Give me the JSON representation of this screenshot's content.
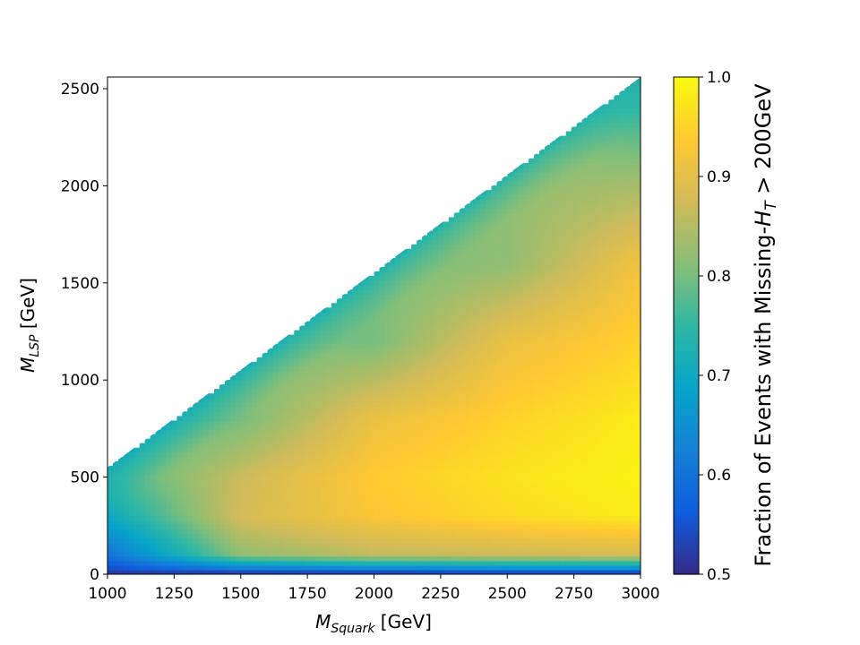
{
  "chart_data": {
    "type": "heatmap",
    "title": "",
    "xlabel": {
      "main": "M",
      "sub": "Squark",
      "unit": " [GeV]"
    },
    "ylabel": {
      "main": "M",
      "sub": "LSP",
      "unit": " [GeV]"
    },
    "colorbar_label": {
      "pre": "Fraction of Events with Missing-",
      "main": "H",
      "sub": "T",
      "post": " > 200GeV"
    },
    "xlim": [
      1000,
      3000
    ],
    "ylim": [
      0,
      2560
    ],
    "x_ticks": [
      1000,
      1250,
      1500,
      1750,
      2000,
      2250,
      2500,
      2750,
      3000
    ],
    "x_tick_labels": [
      "1000",
      "1250",
      "1500",
      "1750",
      "2000",
      "2250",
      "2500",
      "2750",
      "3000"
    ],
    "y_ticks": [
      0,
      500,
      1000,
      1500,
      2000,
      2500
    ],
    "y_tick_labels": [
      "0",
      "500",
      "1000",
      "1500",
      "2000",
      "2500"
    ],
    "colorbar_range": [
      0.5,
      1.0
    ],
    "colorbar_ticks": [
      0.5,
      0.6,
      0.7,
      0.8,
      0.9,
      1.0
    ],
    "colorbar_tick_labels": [
      "0.5",
      "0.6",
      "0.7",
      "0.8",
      "0.9",
      "1.0"
    ],
    "colormap": [
      "#352a87",
      "#0f5cdd",
      "#1481d6",
      "#06a4ca",
      "#2eb7a4",
      "#87bf77",
      "#d1bb59",
      "#fec832",
      "#f9fb0e"
    ],
    "diagonal_boundary": {
      "x": [
        1000,
        3000
      ],
      "y": [
        550,
        2560
      ]
    },
    "samples": {
      "x": [
        1000,
        1500,
        2000,
        2500,
        3000
      ],
      "y": [
        0,
        100,
        300,
        500,
        800,
        1200,
        1600,
        2000,
        2400
      ],
      "z": [
        [
          0.52,
          0.6,
          0.7,
          0.76,
          null,
          null,
          null,
          null,
          null
        ],
        [
          0.53,
          0.82,
          0.88,
          0.87,
          0.8,
          null,
          null,
          null,
          null
        ],
        [
          0.54,
          0.86,
          0.93,
          0.94,
          0.91,
          0.8,
          null,
          null,
          null
        ],
        [
          0.55,
          0.87,
          0.96,
          0.97,
          0.95,
          0.91,
          0.82,
          null,
          null
        ],
        [
          0.55,
          0.88,
          0.98,
          0.99,
          0.98,
          0.95,
          0.92,
          0.84,
          0.75
        ]
      ]
    },
    "grid": false,
    "legend": "colorbar-right"
  }
}
